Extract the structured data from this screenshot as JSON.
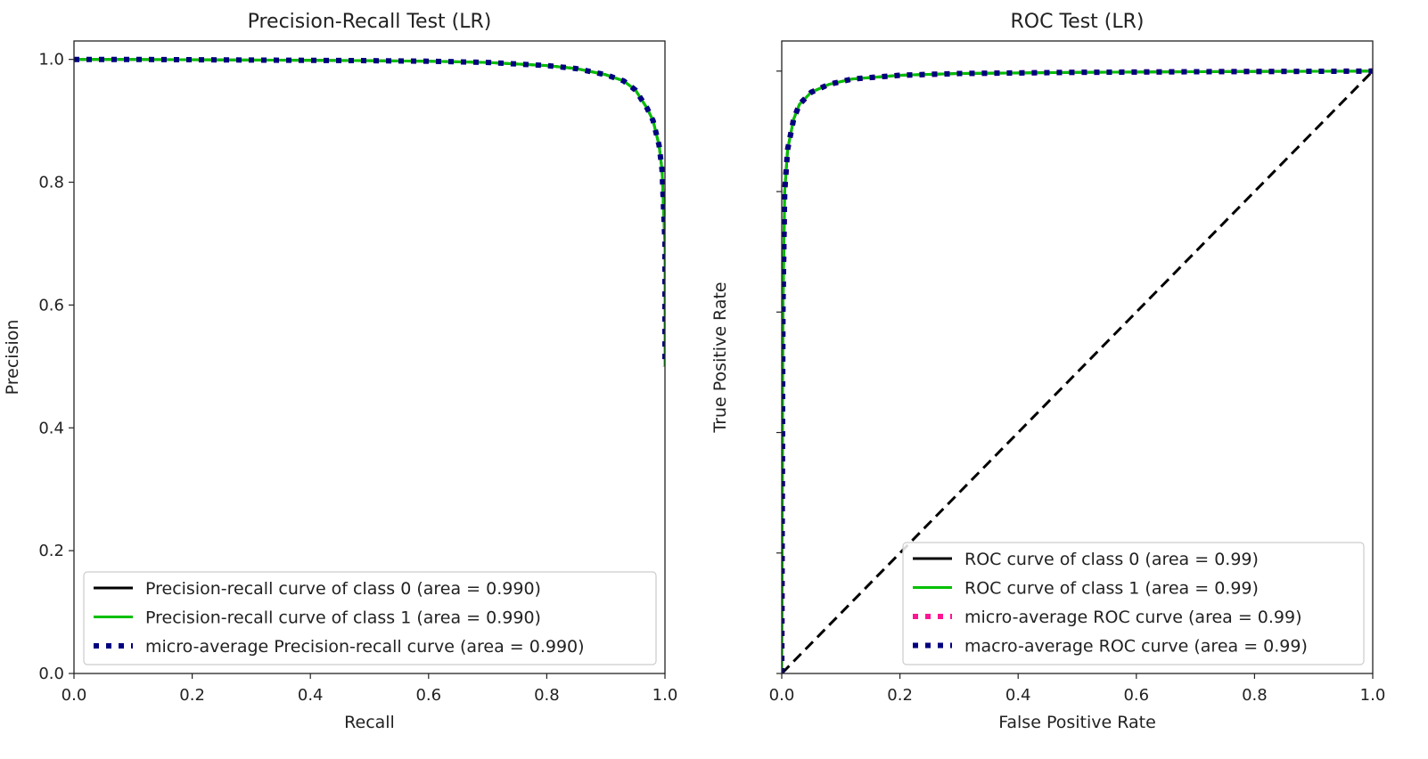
{
  "chart_data": [
    {
      "type": "line",
      "title": "Precision-Recall Test (LR)",
      "xlabel": "Recall",
      "ylabel": "Precision",
      "xlim": [
        0.0,
        1.0
      ],
      "ylim": [
        0.0,
        1.03
      ],
      "x_ticks": [
        "0.0",
        "0.2",
        "0.4",
        "0.6",
        "0.8",
        "1.0"
      ],
      "y_ticks": [
        "0.0",
        "0.2",
        "0.4",
        "0.6",
        "0.8",
        "1.0"
      ],
      "legend_position": "lower-left",
      "series": [
        {
          "name": "Precision-recall curve of class 0 (area = 0.990)",
          "color": "#000000",
          "style": "solid",
          "x": [
            0.0,
            0.1,
            0.3,
            0.5,
            0.6,
            0.7,
            0.8,
            0.85,
            0.9,
            0.93,
            0.95,
            0.97,
            0.98,
            0.99,
            0.995,
            1.0,
            1.0
          ],
          "y": [
            1.0,
            1.0,
            0.999,
            0.998,
            0.997,
            0.995,
            0.99,
            0.985,
            0.975,
            0.965,
            0.95,
            0.92,
            0.9,
            0.86,
            0.82,
            0.7,
            0.5
          ]
        },
        {
          "name": "Precision-recall curve of class 1 (area = 0.990)",
          "color": "#00c000",
          "style": "solid",
          "x": [
            0.0,
            0.1,
            0.3,
            0.5,
            0.6,
            0.7,
            0.8,
            0.85,
            0.9,
            0.93,
            0.95,
            0.97,
            0.98,
            0.99,
            0.995,
            1.0,
            1.0
          ],
          "y": [
            1.0,
            1.0,
            0.999,
            0.998,
            0.997,
            0.995,
            0.99,
            0.985,
            0.975,
            0.965,
            0.95,
            0.92,
            0.9,
            0.86,
            0.82,
            0.7,
            0.5
          ]
        },
        {
          "name": "micro-average Precision-recall curve (area = 0.990)",
          "color": "#000080",
          "style": "dotted",
          "x": [
            0.0,
            0.1,
            0.3,
            0.5,
            0.6,
            0.7,
            0.8,
            0.85,
            0.9,
            0.93,
            0.95,
            0.97,
            0.98,
            0.99,
            0.995,
            1.0,
            1.0
          ],
          "y": [
            1.0,
            1.0,
            0.999,
            0.998,
            0.997,
            0.995,
            0.99,
            0.985,
            0.975,
            0.965,
            0.95,
            0.92,
            0.9,
            0.86,
            0.82,
            0.7,
            0.5
          ]
        }
      ]
    },
    {
      "type": "line",
      "title": "ROC Test (LR)",
      "xlabel": "False Positive Rate",
      "ylabel": "True Positive Rate",
      "xlim": [
        0.0,
        1.0
      ],
      "ylim": [
        0.0,
        1.05
      ],
      "x_ticks": [
        "0.0",
        "0.2",
        "0.4",
        "0.6",
        "0.8",
        "1.0"
      ],
      "y_ticks": [
        "",
        "",
        "",
        "",
        "",
        ""
      ],
      "legend_position": "lower-right",
      "series": [
        {
          "name": "ROC curve of class 0 (area = 0.99)",
          "color": "#000000",
          "style": "solid",
          "x": [
            0.0,
            0.002,
            0.005,
            0.01,
            0.02,
            0.03,
            0.05,
            0.08,
            0.12,
            0.2,
            0.3,
            0.5,
            0.7,
            1.0
          ],
          "y": [
            0.0,
            0.6,
            0.8,
            0.87,
            0.92,
            0.945,
            0.965,
            0.978,
            0.987,
            0.993,
            0.996,
            0.998,
            0.999,
            1.0
          ]
        },
        {
          "name": "ROC curve of class 1 (area = 0.99)",
          "color": "#00c000",
          "style": "solid",
          "x": [
            0.0,
            0.002,
            0.005,
            0.01,
            0.02,
            0.03,
            0.05,
            0.08,
            0.12,
            0.2,
            0.3,
            0.5,
            0.7,
            1.0
          ],
          "y": [
            0.0,
            0.6,
            0.8,
            0.87,
            0.92,
            0.945,
            0.965,
            0.978,
            0.987,
            0.993,
            0.996,
            0.998,
            0.999,
            1.0
          ]
        },
        {
          "name": "micro-average ROC curve (area = 0.99)",
          "color": "#ff1493",
          "style": "dotted",
          "x": [
            0.0,
            0.002,
            0.005,
            0.01,
            0.02,
            0.03,
            0.05,
            0.08,
            0.12,
            0.2,
            0.3,
            0.5,
            0.7,
            1.0
          ],
          "y": [
            0.0,
            0.6,
            0.8,
            0.87,
            0.92,
            0.945,
            0.965,
            0.978,
            0.987,
            0.993,
            0.996,
            0.998,
            0.999,
            1.0
          ]
        },
        {
          "name": "macro-average ROC curve (area = 0.99)",
          "color": "#000080",
          "style": "dotted",
          "x": [
            0.0,
            0.002,
            0.005,
            0.01,
            0.02,
            0.03,
            0.05,
            0.08,
            0.12,
            0.2,
            0.3,
            0.5,
            0.7,
            1.0
          ],
          "y": [
            0.0,
            0.6,
            0.8,
            0.87,
            0.92,
            0.945,
            0.965,
            0.978,
            0.987,
            0.993,
            0.996,
            0.998,
            0.999,
            1.0
          ]
        }
      ],
      "reference_line": {
        "x": [
          0,
          1
        ],
        "y": [
          0,
          1
        ],
        "color": "#000000",
        "style": "dashed"
      }
    }
  ]
}
